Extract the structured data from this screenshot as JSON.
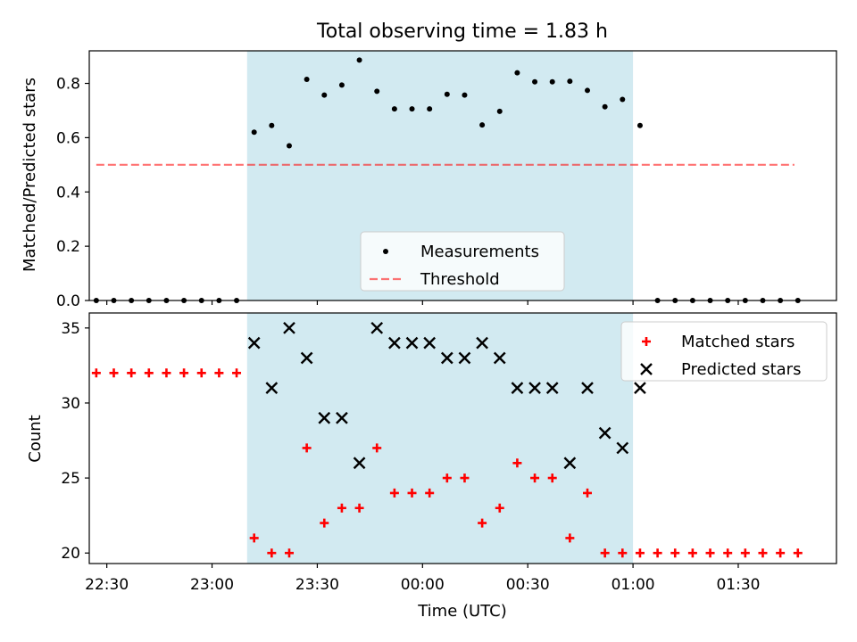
{
  "chart_data": {
    "title": "Total observing time = 1.83 h",
    "colors": {
      "observing_band": "#add8e6",
      "measurements": "#000000",
      "threshold": "#ff0000",
      "matched": "#ff0000",
      "predicted": "#000000"
    },
    "x_axis": {
      "label": "Time (UTC)",
      "range": [
        "22:25",
        "01:58"
      ],
      "ticks": [
        "22:30",
        "23:00",
        "23:30",
        "00:00",
        "00:30",
        "01:00",
        "01:30"
      ]
    },
    "observing_window": [
      "23:10",
      "01:00"
    ],
    "top": {
      "type": "scatter",
      "ylabel": "Matched/Predicted stars",
      "ylim": [
        0,
        0.92
      ],
      "yticks": [
        "0.0",
        "0.2",
        "0.4",
        "0.6",
        "0.8"
      ],
      "threshold": {
        "value": 0.5,
        "x": [
          "22:27",
          "01:46"
        ]
      },
      "legend": {
        "position": "lower center",
        "entries": [
          "Measurements",
          "Threshold"
        ]
      },
      "series": [
        {
          "name": "Measurements",
          "x": [
            "22:27",
            "22:32",
            "22:37",
            "22:42",
            "22:47",
            "22:52",
            "22:57",
            "23:02",
            "23:07",
            "23:12",
            "23:17",
            "23:22",
            "23:27",
            "23:32",
            "23:37",
            "23:42",
            "23:47",
            "23:52",
            "23:57",
            "00:02",
            "00:07",
            "00:12",
            "00:17",
            "00:22",
            "00:27",
            "00:32",
            "00:37",
            "00:42",
            "00:47",
            "00:52",
            "00:57",
            "01:02",
            "01:07",
            "01:12",
            "01:17",
            "01:22",
            "01:27",
            "01:32",
            "01:37",
            "01:42",
            "01:47"
          ],
          "values": [
            0,
            0,
            0,
            0,
            0,
            0,
            0,
            0,
            0,
            0.62,
            0.645,
            0.57,
            0.815,
            0.757,
            0.794,
            0.886,
            0.771,
            0.706,
            0.706,
            0.706,
            0.76,
            0.757,
            0.647,
            0.697,
            0.839,
            0.806,
            0.806,
            0.808,
            0.774,
            0.714,
            0.741,
            0.645,
            0,
            0,
            0,
            0,
            0,
            0,
            0,
            0,
            0
          ]
        }
      ]
    },
    "bottom": {
      "type": "scatter",
      "ylabel": "Count",
      "ylim": [
        19.3,
        36
      ],
      "yticks": [
        "20",
        "25",
        "30",
        "35"
      ],
      "legend": {
        "position": "upper right",
        "entries": [
          "Matched stars",
          "Predicted stars"
        ]
      },
      "series": [
        {
          "name": "Matched stars",
          "marker": "+",
          "x": [
            "22:27",
            "22:32",
            "22:37",
            "22:42",
            "22:47",
            "22:52",
            "22:57",
            "23:02",
            "23:07",
            "23:12",
            "23:17",
            "23:22",
            "23:27",
            "23:32",
            "23:37",
            "23:42",
            "23:47",
            "23:52",
            "23:57",
            "00:02",
            "00:07",
            "00:12",
            "00:17",
            "00:22",
            "00:27",
            "00:32",
            "00:37",
            "00:42",
            "00:47",
            "00:52",
            "00:57",
            "01:02",
            "01:07",
            "01:12",
            "01:17",
            "01:22",
            "01:27",
            "01:32",
            "01:37",
            "01:42",
            "01:47"
          ],
          "values": [
            32,
            32,
            32,
            32,
            32,
            32,
            32,
            32,
            32,
            21,
            20,
            20,
            27,
            22,
            23,
            23,
            27,
            24,
            24,
            24,
            25,
            25,
            22,
            23,
            26,
            25,
            25,
            21,
            24,
            20,
            20,
            20,
            20,
            20,
            20,
            20,
            20,
            20,
            20,
            20,
            20
          ]
        },
        {
          "name": "Predicted stars",
          "marker": "x",
          "x": [
            "23:12",
            "23:17",
            "23:22",
            "23:27",
            "23:32",
            "23:37",
            "23:42",
            "23:47",
            "23:52",
            "23:57",
            "00:02",
            "00:07",
            "00:12",
            "00:17",
            "00:22",
            "00:27",
            "00:32",
            "00:37",
            "00:42",
            "00:47",
            "00:52",
            "00:57",
            "01:02"
          ],
          "values": [
            34,
            31,
            35,
            33,
            29,
            29,
            26,
            35,
            34,
            34,
            34,
            33,
            33,
            34,
            33,
            31,
            31,
            31,
            26,
            31,
            28,
            27,
            31
          ]
        }
      ]
    }
  }
}
